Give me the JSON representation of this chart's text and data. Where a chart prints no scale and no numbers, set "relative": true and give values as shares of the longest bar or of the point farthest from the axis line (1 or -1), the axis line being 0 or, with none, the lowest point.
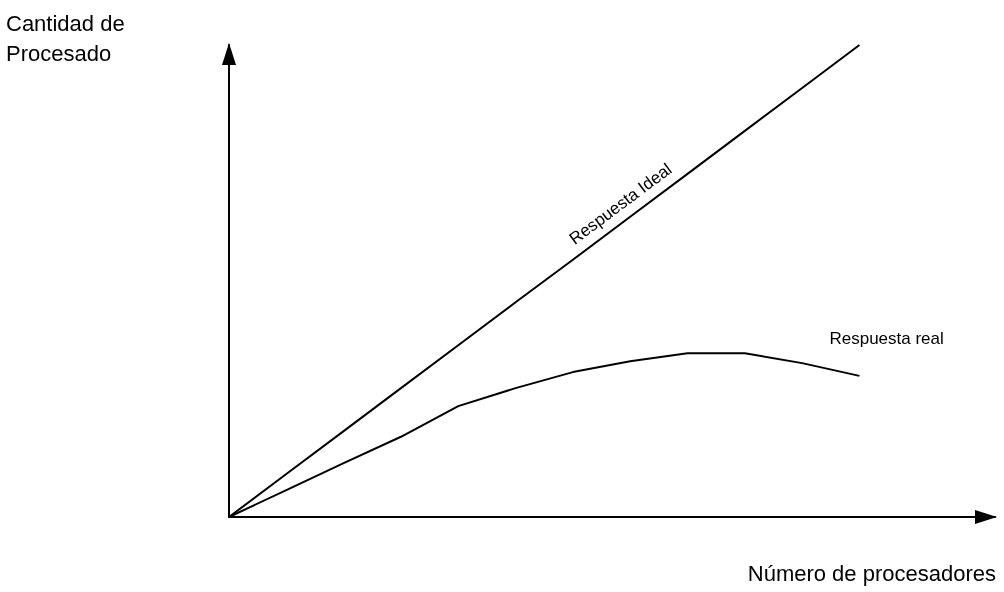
{
  "chart_data": {
    "type": "line",
    "relative": true,
    "marker": "none",
    "xlabel": "Número de procesadores",
    "ylabel": "Cantidad de Procesado",
    "categories": [
      null,
      null,
      null,
      null,
      null,
      null,
      null,
      null,
      null,
      null,
      null,
      null
    ],
    "series": [
      {
        "name": "Respuesta Ideal",
        "color": "#000000",
        "values": [
          0,
          0.091,
          0.182,
          0.273,
          0.364,
          0.455,
          0.545,
          0.636,
          0.727,
          0.818,
          0.909,
          1
        ]
      },
      {
        "name": "Respuesta real",
        "color": "#000000",
        "values": [
          0,
          0.057,
          0.114,
          0.17,
          0.235,
          0.273,
          0.307,
          0.33,
          0.347,
          0.347,
          0.326,
          0.299
        ]
      }
    ]
  }
}
